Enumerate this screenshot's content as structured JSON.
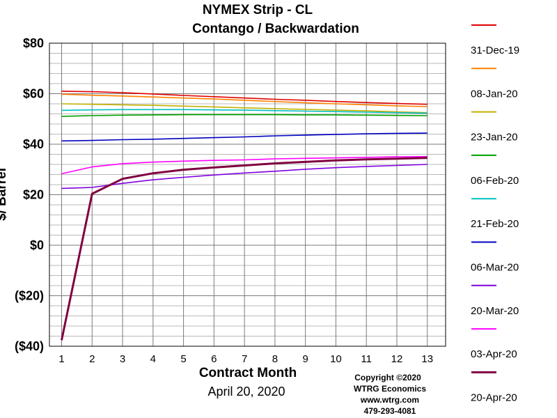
{
  "chart_data": {
    "type": "line",
    "title": "NYMEX Strip - CL",
    "subtitle": "Contango / Backwardation",
    "xlabel": "Contract Month",
    "ylabel": "$/ Barrel",
    "date_label": "April 20, 2020",
    "x": [
      1,
      2,
      3,
      4,
      5,
      6,
      7,
      8,
      9,
      10,
      11,
      12,
      13
    ],
    "xlim": [
      0.6,
      13.6
    ],
    "ylim": [
      -40,
      80
    ],
    "yticks": [
      {
        "value": 80,
        "label": "$80"
      },
      {
        "value": 60,
        "label": "$60"
      },
      {
        "value": 40,
        "label": "$40"
      },
      {
        "value": 20,
        "label": "$20"
      },
      {
        "value": 0,
        "label": "$0"
      },
      {
        "value": -20,
        "label": "($20)"
      },
      {
        "value": -40,
        "label": "($40)"
      }
    ],
    "xticks": [
      "1",
      "2",
      "3",
      "4",
      "5",
      "6",
      "7",
      "8",
      "9",
      "10",
      "11",
      "12",
      "13"
    ],
    "grid": true,
    "legend_position": "right",
    "series": [
      {
        "name": "31-Dec-19",
        "color": "#e00000",
        "values": [
          61.0,
          60.8,
          60.4,
          59.9,
          59.3,
          58.8,
          58.3,
          57.8,
          57.4,
          56.9,
          56.5,
          56.1,
          55.8
        ]
      },
      {
        "name": "08-Jan-20",
        "color": "#ff8000",
        "values": [
          59.8,
          59.4,
          59.1,
          58.7,
          58.3,
          57.9,
          57.4,
          56.9,
          56.4,
          56.0,
          55.6,
          55.2,
          54.9
        ]
      },
      {
        "name": "23-Jan-20",
        "color": "#c0b000",
        "values": [
          56.0,
          55.8,
          55.6,
          55.4,
          55.1,
          54.8,
          54.4,
          54.1,
          53.8,
          53.5,
          53.2,
          52.8,
          52.5
        ]
      },
      {
        "name": "06-Feb-20",
        "color": "#00a000",
        "values": [
          51.0,
          51.3,
          51.5,
          51.6,
          51.7,
          51.7,
          51.7,
          51.7,
          51.6,
          51.6,
          51.5,
          51.4,
          51.3
        ]
      },
      {
        "name": "21-Feb-20",
        "color": "#00c0c0",
        "values": [
          53.4,
          53.6,
          53.7,
          53.7,
          53.7,
          53.6,
          53.5,
          53.3,
          53.1,
          52.9,
          52.7,
          52.5,
          52.3
        ]
      },
      {
        "name": "06-Mar-20",
        "color": "#0000c0",
        "values": [
          41.3,
          41.5,
          41.8,
          42.0,
          42.3,
          42.6,
          42.9,
          43.3,
          43.6,
          43.9,
          44.1,
          44.3,
          44.4
        ]
      },
      {
        "name": "20-Mar-20",
        "color": "#8000e0",
        "values": [
          22.5,
          22.9,
          24.5,
          25.9,
          26.9,
          27.8,
          28.6,
          29.3,
          30.1,
          30.7,
          31.2,
          31.6,
          32.0
        ]
      },
      {
        "name": "03-Apr-20",
        "color": "#ff00ff",
        "values": [
          28.3,
          31.0,
          32.3,
          32.9,
          33.3,
          33.6,
          33.8,
          34.2,
          34.4,
          34.6,
          34.8,
          35.0,
          35.1
        ]
      },
      {
        "name": "20-Apr-20",
        "color": "#800040",
        "values": [
          -37.6,
          20.4,
          26.3,
          28.5,
          29.9,
          30.8,
          31.6,
          32.4,
          33.0,
          33.6,
          34.0,
          34.3,
          34.6
        ]
      }
    ]
  },
  "credits": {
    "line1": "Copyright  ©2020",
    "line2": "WTRG Economics",
    "line3": "www.wtrg.com",
    "line4": "479-293-4081"
  }
}
